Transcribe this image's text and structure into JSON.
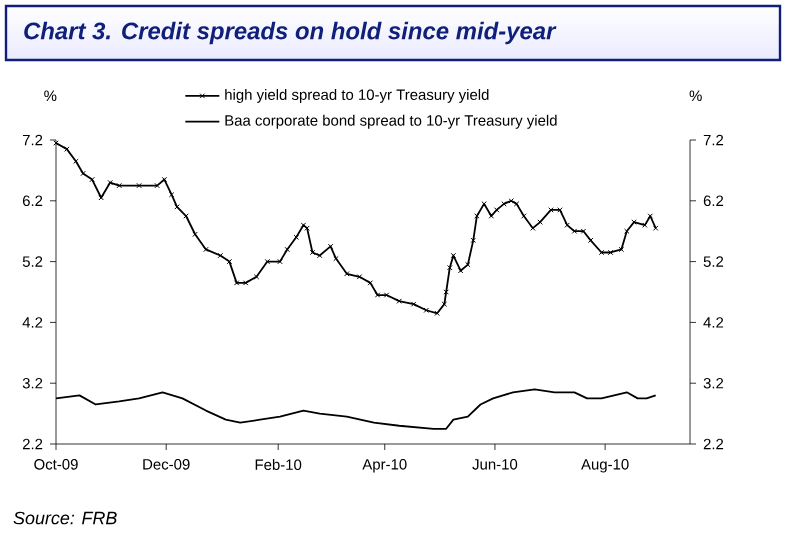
{
  "chart_data": {
    "type": "line",
    "title": "Chart 3.  Credit spreads on hold since mid-year",
    "ylabel": "%",
    "y2label": "%",
    "annotations": [
      "Source: FRB"
    ],
    "xlim": [
      "2009-10-01",
      "2010-09-17"
    ],
    "xticks": [
      {
        "value": "2009-10-01",
        "label": "Oct-09"
      },
      {
        "value": "2009-12-01",
        "label": "Dec-09"
      },
      {
        "value": "2010-02-01",
        "label": "Feb-10"
      },
      {
        "value": "2010-04-01",
        "label": "Apr-10"
      },
      {
        "value": "2010-06-01",
        "label": "Jun-10"
      },
      {
        "value": "2010-08-01",
        "label": "Aug-10"
      }
    ],
    "ylim": [
      2.2,
      7.2
    ],
    "yticks": [
      2.2,
      3.2,
      4.2,
      5.2,
      6.2,
      7.2
    ],
    "y2lim": [
      2.2,
      7.2
    ],
    "y2ticks": [
      2.2,
      3.2,
      4.2,
      5.2,
      6.2,
      7.2
    ],
    "legend": "top",
    "grid": false,
    "series": [
      {
        "name": "high yield spread to 10-yr Treasury yield",
        "color": "#000000",
        "marker": "cross",
        "x": [
          "2009-10-01",
          "2009-10-07",
          "2009-10-12",
          "2009-10-16",
          "2009-10-21",
          "2009-10-26",
          "2009-10-31",
          "2009-11-05",
          "2009-11-16",
          "2009-11-26",
          "2009-11-30",
          "2009-12-04",
          "2009-12-07",
          "2009-12-12",
          "2009-12-17",
          "2009-12-23",
          "2009-12-31",
          "2010-01-05",
          "2010-01-09",
          "2010-01-14",
          "2010-01-20",
          "2010-01-26",
          "2010-02-02",
          "2010-02-06",
          "2010-02-11",
          "2010-02-15",
          "2010-02-17",
          "2010-02-20",
          "2010-02-24",
          "2010-03-02",
          "2010-03-05",
          "2010-03-11",
          "2010-03-18",
          "2010-03-24",
          "2010-03-28",
          "2010-04-02",
          "2010-04-09",
          "2010-04-17",
          "2010-04-24",
          "2010-04-30",
          "2010-05-04",
          "2010-05-05",
          "2010-05-07",
          "2010-05-09",
          "2010-05-13",
          "2010-05-17",
          "2010-05-20",
          "2010-05-22",
          "2010-05-26",
          "2010-05-30",
          "2010-06-02",
          "2010-06-06",
          "2010-06-10",
          "2010-06-13",
          "2010-06-17",
          "2010-06-22",
          "2010-06-26",
          "2010-07-02",
          "2010-07-07",
          "2010-07-11",
          "2010-07-15",
          "2010-07-20",
          "2010-07-24",
          "2010-07-30",
          "2010-08-04",
          "2010-08-10",
          "2010-08-13",
          "2010-08-17",
          "2010-08-23",
          "2010-08-26",
          "2010-08-29"
        ],
        "values": [
          7.15,
          7.05,
          6.85,
          6.65,
          6.55,
          6.25,
          6.5,
          6.45,
          6.45,
          6.45,
          6.55,
          6.3,
          6.1,
          5.95,
          5.65,
          5.4,
          5.3,
          5.2,
          4.85,
          4.85,
          4.95,
          5.2,
          5.2,
          5.4,
          5.6,
          5.8,
          5.75,
          5.35,
          5.3,
          5.45,
          5.25,
          5.0,
          4.95,
          4.85,
          4.65,
          4.65,
          4.55,
          4.5,
          4.4,
          4.35,
          4.5,
          4.7,
          5.1,
          5.3,
          5.05,
          5.15,
          5.55,
          5.95,
          6.15,
          5.95,
          6.05,
          6.15,
          6.2,
          6.15,
          5.95,
          5.75,
          5.85,
          6.05,
          6.05,
          5.8,
          5.7,
          5.7,
          5.55,
          5.35,
          5.35,
          5.4,
          5.7,
          5.85,
          5.8,
          5.95,
          5.75
        ]
      },
      {
        "name": "Baa corporate bond spread to 10-yr Treasury yield",
        "color": "#000000",
        "marker": "none",
        "x": [
          "2009-10-01",
          "2009-10-14",
          "2009-10-23",
          "2009-11-05",
          "2009-11-16",
          "2009-11-29",
          "2009-12-10",
          "2009-12-23",
          "2010-01-03",
          "2010-01-11",
          "2010-01-22",
          "2010-02-02",
          "2010-02-15",
          "2010-02-24",
          "2010-03-11",
          "2010-03-26",
          "2010-04-09",
          "2010-04-28",
          "2010-05-05",
          "2010-05-09",
          "2010-05-17",
          "2010-05-24",
          "2010-05-31",
          "2010-06-11",
          "2010-06-23",
          "2010-07-04",
          "2010-07-15",
          "2010-07-22",
          "2010-07-30",
          "2010-08-06",
          "2010-08-13",
          "2010-08-19",
          "2010-08-24",
          "2010-08-29"
        ],
        "values": [
          2.95,
          3.0,
          2.85,
          2.9,
          2.95,
          3.05,
          2.95,
          2.75,
          2.6,
          2.55,
          2.6,
          2.65,
          2.75,
          2.7,
          2.65,
          2.55,
          2.5,
          2.45,
          2.45,
          2.6,
          2.65,
          2.85,
          2.95,
          3.05,
          3.1,
          3.05,
          3.05,
          2.95,
          2.95,
          3.0,
          3.05,
          2.95,
          2.95,
          3.0
        ]
      }
    ]
  }
}
